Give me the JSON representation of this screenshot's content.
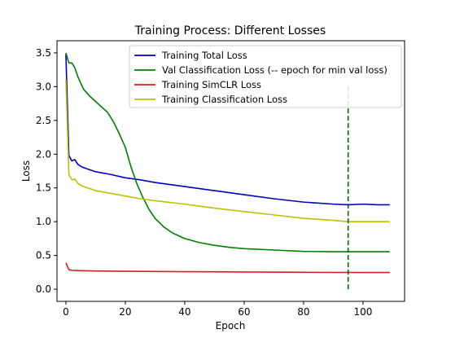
{
  "chart_data": {
    "type": "line",
    "title": "Training Process: Different Losses",
    "xlabel": "Epoch",
    "ylabel": "Loss",
    "xlim": [
      -3,
      114
    ],
    "ylim": [
      -0.18,
      3.68
    ],
    "xticks": [
      0,
      20,
      40,
      60,
      80,
      100
    ],
    "yticks": [
      0.0,
      0.5,
      1.0,
      1.5,
      2.0,
      2.5,
      3.0,
      3.5
    ],
    "xtick_labels": [
      "0",
      "20",
      "40",
      "60",
      "80",
      "100"
    ],
    "ytick_labels": [
      "0.0",
      "0.5",
      "1.0",
      "1.5",
      "2.0",
      "2.5",
      "3.0",
      "3.5"
    ],
    "grid": false,
    "legend_position": "top-right",
    "series": [
      {
        "name": "Training Total Loss",
        "color": "#0000bf",
        "points": [
          [
            0,
            3.48
          ],
          [
            1,
            1.98
          ],
          [
            2,
            1.9
          ],
          [
            3,
            1.92
          ],
          [
            4,
            1.85
          ],
          [
            5,
            1.82
          ],
          [
            6,
            1.8
          ],
          [
            8,
            1.77
          ],
          [
            10,
            1.74
          ],
          [
            15,
            1.7
          ],
          [
            20,
            1.65
          ],
          [
            25,
            1.62
          ],
          [
            30,
            1.58
          ],
          [
            40,
            1.52
          ],
          [
            50,
            1.46
          ],
          [
            60,
            1.4
          ],
          [
            70,
            1.34
          ],
          [
            80,
            1.29
          ],
          [
            90,
            1.26
          ],
          [
            95,
            1.25
          ],
          [
            100,
            1.26
          ],
          [
            105,
            1.25
          ],
          [
            109,
            1.25
          ]
        ]
      },
      {
        "name": "Val Classification Loss (-- epoch for min val loss)",
        "color": "#007f00",
        "points": [
          [
            0,
            3.5
          ],
          [
            1,
            3.35
          ],
          [
            2,
            3.35
          ],
          [
            3,
            3.28
          ],
          [
            4,
            3.15
          ],
          [
            5,
            3.05
          ],
          [
            6,
            2.96
          ],
          [
            8,
            2.86
          ],
          [
            10,
            2.78
          ],
          [
            12,
            2.7
          ],
          [
            14,
            2.62
          ],
          [
            16,
            2.48
          ],
          [
            18,
            2.3
          ],
          [
            20,
            2.1
          ],
          [
            22,
            1.8
          ],
          [
            24,
            1.55
          ],
          [
            26,
            1.35
          ],
          [
            28,
            1.18
          ],
          [
            30,
            1.05
          ],
          [
            33,
            0.92
          ],
          [
            36,
            0.83
          ],
          [
            40,
            0.75
          ],
          [
            45,
            0.69
          ],
          [
            50,
            0.65
          ],
          [
            55,
            0.62
          ],
          [
            60,
            0.6
          ],
          [
            70,
            0.58
          ],
          [
            80,
            0.56
          ],
          [
            90,
            0.555
          ],
          [
            95,
            0.555
          ],
          [
            100,
            0.555
          ],
          [
            109,
            0.555
          ]
        ]
      },
      {
        "name": "Training SimCLR Loss",
        "color": "#d62020",
        "points": [
          [
            0,
            0.39
          ],
          [
            1,
            0.29
          ],
          [
            2,
            0.28
          ],
          [
            5,
            0.275
          ],
          [
            10,
            0.27
          ],
          [
            20,
            0.265
          ],
          [
            40,
            0.26
          ],
          [
            60,
            0.255
          ],
          [
            80,
            0.25
          ],
          [
            100,
            0.248
          ],
          [
            109,
            0.248
          ]
        ]
      },
      {
        "name": "Training Classification Loss",
        "color": "#bfbf00",
        "points": [
          [
            0,
            3.1
          ],
          [
            1,
            1.7
          ],
          [
            2,
            1.62
          ],
          [
            3,
            1.63
          ],
          [
            4,
            1.57
          ],
          [
            5,
            1.54
          ],
          [
            6,
            1.52
          ],
          [
            8,
            1.49
          ],
          [
            10,
            1.46
          ],
          [
            15,
            1.42
          ],
          [
            20,
            1.38
          ],
          [
            25,
            1.34
          ],
          [
            30,
            1.31
          ],
          [
            40,
            1.26
          ],
          [
            50,
            1.2
          ],
          [
            60,
            1.15
          ],
          [
            70,
            1.1
          ],
          [
            80,
            1.05
          ],
          [
            90,
            1.02
          ],
          [
            95,
            1.0
          ],
          [
            100,
            1.0
          ],
          [
            105,
            1.0
          ],
          [
            109,
            1.0
          ]
        ]
      }
    ],
    "vline": {
      "x": 95,
      "y_range": [
        0.0,
        3.0
      ],
      "color": "#006400",
      "style": "dashed"
    }
  }
}
